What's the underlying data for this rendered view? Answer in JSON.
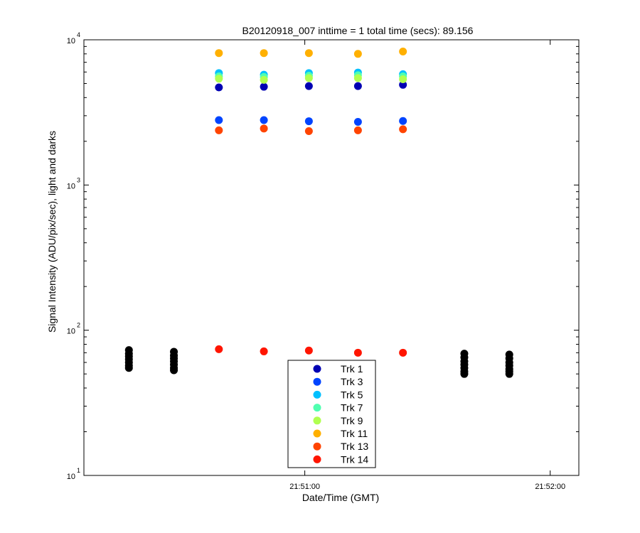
{
  "chart_data": {
    "type": "scatter",
    "title": "B20120918_007 inttime = 1 total time (secs): 89.156",
    "xlabel": "Date/Time (GMT)",
    "ylabel": "Signal Intensity (ADU/pix/sec), light and darks",
    "y_scale": "log",
    "ylim": [
      10,
      10000
    ],
    "xlim": [
      "21:50:06",
      "21:52:07"
    ],
    "x_tick_labels": [
      "21:51:00",
      "21:52:00"
    ],
    "y_ticks": [
      {
        "base": "10",
        "exp": "1"
      },
      {
        "base": "10",
        "exp": "2"
      },
      {
        "base": "10",
        "exp": "3"
      },
      {
        "base": "10",
        "exp": "4"
      }
    ],
    "grid": false,
    "legend_position": "bottom-center",
    "times": [
      "21:50:39",
      "21:50:50",
      "21:51:01",
      "21:51:13",
      "21:51:24"
    ],
    "series": [
      {
        "name": "Trk 1",
        "color": "#0000b3",
        "values": [
          4700,
          4750,
          4800,
          4800,
          4900
        ]
      },
      {
        "name": "Trk 3",
        "color": "#0044ff",
        "values": [
          2800,
          2800,
          2750,
          2720,
          2760
        ]
      },
      {
        "name": "Trk 5",
        "color": "#00c0ff",
        "values": [
          5900,
          5750,
          5900,
          5950,
          5800
        ]
      },
      {
        "name": "Trk 7",
        "color": "#50ffb0",
        "values": [
          5600,
          5550,
          5650,
          5700,
          5600
        ]
      },
      {
        "name": "Trk 9",
        "color": "#b0ff50",
        "values": [
          5400,
          5300,
          5450,
          5450,
          5350
        ]
      },
      {
        "name": "Trk 11",
        "color": "#ffb000",
        "values": [
          8100,
          8100,
          8100,
          8000,
          8300
        ]
      },
      {
        "name": "Trk 13",
        "color": "#ff4400",
        "values": [
          2380,
          2450,
          2350,
          2380,
          2420
        ]
      },
      {
        "name": "Trk 14",
        "color": "#ff1500",
        "values": [
          74,
          71.5,
          72.5,
          70,
          70
        ]
      }
    ],
    "darks": {
      "color": "#000000",
      "groups": [
        {
          "time": "21:50:17",
          "values": [
            73,
            69,
            66,
            63,
            60,
            57,
            55
          ]
        },
        {
          "time": "21:50:28",
          "values": [
            71,
            67,
            64,
            61,
            58,
            55,
            53
          ]
        },
        {
          "time": "21:51:39",
          "values": [
            69,
            65,
            61,
            58,
            55,
            52,
            50
          ]
        },
        {
          "time": "21:51:50",
          "values": [
            68,
            64,
            60,
            57,
            54,
            52,
            50
          ]
        }
      ]
    }
  }
}
